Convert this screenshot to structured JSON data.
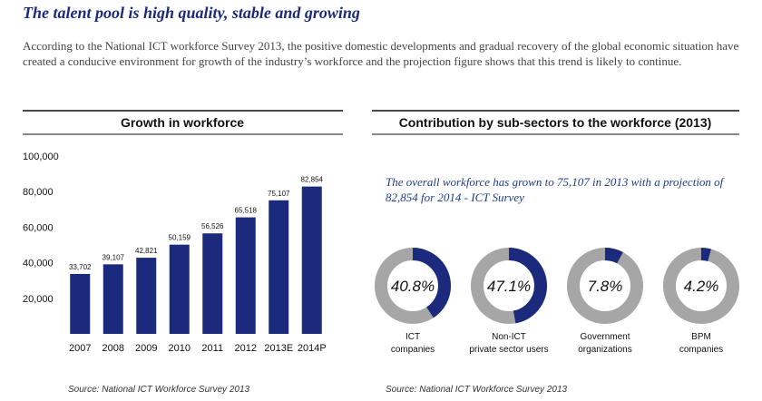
{
  "header": {
    "title": "The talent pool is high quality, stable and growing",
    "intro": "According to the National ICT workforce Survey 2013, the positive domestic developments and gradual recovery of the global economic situation have created a conducive environment for growth of the industry’s workforce and the projection figure shows that this trend is likely to continue."
  },
  "chart_data": [
    {
      "type": "bar",
      "title": "Growth in workforce",
      "categories": [
        "2007",
        "2008",
        "2009",
        "2010",
        "2011",
        "2012",
        "2013E",
        "2014P"
      ],
      "values": [
        33702,
        39107,
        42821,
        50159,
        56526,
        65518,
        75107,
        82854
      ],
      "value_labels": [
        "33,702",
        "39,107",
        "42,821",
        "50,159",
        "56,526",
        "65,518",
        "75,107",
        "82,854"
      ],
      "color": "#1b2a7c",
      "ylim": [
        0,
        100000
      ],
      "yticks": [
        {
          "value": 20000,
          "label": "20,000"
        },
        {
          "value": 40000,
          "label": "40,000"
        },
        {
          "value": 60000,
          "label": "60,000"
        },
        {
          "value": 80000,
          "label": "80,000"
        },
        {
          "value": 100000,
          "label": "100,000"
        }
      ],
      "grid": false,
      "source": "Source:  National ICT Workforce Survey 2013"
    },
    {
      "type": "donut",
      "title": "Contribution by sub-sectors to the workforce (2013)",
      "annotation": "The overall workforce has grown to 75,107 in 2013 with a projection of 82,854 for 2014 - ICT Survey",
      "categories": [
        "ICT companies",
        "Non-ICT private sector users",
        "Government organizations",
        "BPM companies"
      ],
      "values": [
        40.8,
        47.1,
        7.8,
        4.2
      ],
      "value_labels": [
        "40.8%",
        "47.1%",
        "7.8%",
        "4.2%"
      ],
      "color": "#1b2a7c",
      "rest_color": "#a6a6a6",
      "source": "Source: National ICT Workforce Survey 2013"
    }
  ]
}
